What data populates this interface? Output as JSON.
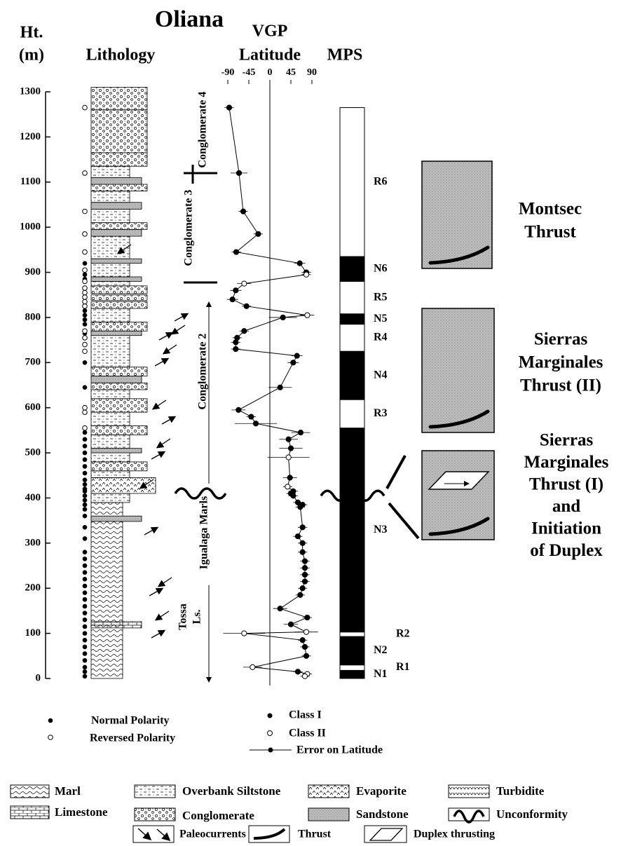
{
  "title": "Oliana",
  "height_axis": {
    "label_lines": [
      "Ht.",
      "(m)"
    ],
    "ylim": [
      0,
      1300
    ],
    "yticks": [
      0,
      100,
      200,
      300,
      400,
      500,
      600,
      700,
      800,
      900,
      1000,
      1100,
      1200,
      1300
    ]
  },
  "lithology": {
    "title": "Lithology",
    "layers": [
      {
        "rock": "Marl",
        "from": 0,
        "to": 390
      },
      {
        "rock": "Limestone",
        "from": 112,
        "to": 126
      },
      {
        "rock": "Sandstone",
        "from": 348,
        "to": 360
      },
      {
        "rock": "Overbank Siltstone",
        "from": 390,
        "to": 410
      },
      {
        "rock": "Evaporite",
        "from": 410,
        "to": 445
      },
      {
        "rock": "Overbank Siltstone",
        "from": 445,
        "to": 460
      },
      {
        "rock": "Conglomerate",
        "from": 460,
        "to": 480
      },
      {
        "rock": "Overbank Siltstone",
        "from": 480,
        "to": 500
      },
      {
        "rock": "Sandstone",
        "from": 500,
        "to": 510
      },
      {
        "rock": "Overbank Siltstone",
        "from": 510,
        "to": 540
      },
      {
        "rock": "Conglomerate",
        "from": 540,
        "to": 560
      },
      {
        "rock": "Overbank Siltstone",
        "from": 560,
        "to": 590
      },
      {
        "rock": "Conglomerate",
        "from": 590,
        "to": 620
      },
      {
        "rock": "Overbank Siltstone",
        "from": 620,
        "to": 640
      },
      {
        "rock": "Conglomerate",
        "from": 640,
        "to": 655
      },
      {
        "rock": "Sandstone",
        "from": 655,
        "to": 670
      },
      {
        "rock": "Conglomerate",
        "from": 670,
        "to": 690
      },
      {
        "rock": "Overbank Siltstone",
        "from": 690,
        "to": 760
      },
      {
        "rock": "Sandstone",
        "from": 760,
        "to": 770
      },
      {
        "rock": "Conglomerate",
        "from": 770,
        "to": 790
      },
      {
        "rock": "Overbank Siltstone",
        "from": 790,
        "to": 820
      },
      {
        "rock": "Conglomerate",
        "from": 820,
        "to": 835
      },
      {
        "rock": "Conglomerate",
        "from": 838,
        "to": 850
      },
      {
        "rock": "Conglomerate",
        "from": 853,
        "to": 870
      },
      {
        "rock": "Overbank Siltstone",
        "from": 870,
        "to": 880
      },
      {
        "rock": "Sandstone",
        "from": 880,
        "to": 890
      },
      {
        "rock": "Overbank Siltstone",
        "from": 890,
        "to": 920
      },
      {
        "rock": "Sandstone",
        "from": 920,
        "to": 930
      },
      {
        "rock": "Overbank Siltstone",
        "from": 930,
        "to": 980
      },
      {
        "rock": "Sandstone",
        "from": 980,
        "to": 995
      },
      {
        "rock": "Conglomerate",
        "from": 995,
        "to": 1010
      },
      {
        "rock": "Overbank Siltstone",
        "from": 1010,
        "to": 1040
      },
      {
        "rock": "Sandstone",
        "from": 1040,
        "to": 1055
      },
      {
        "rock": "Overbank Siltstone",
        "from": 1055,
        "to": 1080
      },
      {
        "rock": "Conglomerate",
        "from": 1080,
        "to": 1095
      },
      {
        "rock": "Sandstone",
        "from": 1095,
        "to": 1110
      },
      {
        "rock": "Overbank Siltstone",
        "from": 1110,
        "to": 1135
      },
      {
        "rock": "Conglomerate",
        "from": 1135,
        "to": 1165
      },
      {
        "rock": "Conglomerate",
        "from": 1165,
        "to": 1260
      },
      {
        "rock": "Conglomerate",
        "from": 1260,
        "to": 1310
      }
    ],
    "normal_polarity_heights": [
      5,
      15,
      25,
      40,
      55,
      70,
      85,
      100,
      115,
      130,
      145,
      160,
      175,
      190,
      205,
      220,
      235,
      250,
      265,
      280,
      310,
      335,
      360,
      375,
      385,
      395,
      405,
      415,
      420,
      430,
      440,
      455,
      470,
      485,
      500,
      515,
      530,
      545,
      645,
      700,
      765,
      785,
      795,
      805,
      815,
      885,
      895,
      920
    ],
    "reversed_polarity_heights": [
      555,
      590,
      600,
      725,
      740,
      755,
      770,
      825,
      835,
      845,
      855,
      865,
      880,
      905,
      945,
      985,
      1035,
      1120,
      1265
    ]
  },
  "vgp": {
    "title_lines": [
      "VGP",
      "Latitude"
    ],
    "xlim": [
      -90,
      90
    ],
    "xticks": [
      -90,
      -45,
      0,
      45,
      90
    ],
    "heights": [
      1265,
      1120,
      1035,
      985,
      945,
      920,
      900,
      895,
      875,
      860,
      840,
      825,
      805,
      800,
      770,
      755,
      745,
      730,
      715,
      700,
      645,
      595,
      580,
      565,
      545,
      530,
      510,
      490,
      445,
      425,
      415,
      410,
      405,
      390,
      385,
      380,
      335,
      315,
      300,
      280,
      260,
      245,
      230,
      215,
      200,
      185,
      155,
      135,
      120,
      103,
      100,
      85,
      70,
      50,
      25,
      15,
      10,
      5
    ],
    "latitudes": [
      -87,
      -66,
      -57,
      -25,
      -72,
      64,
      78,
      78,
      -55,
      -73,
      -80,
      -50,
      80,
      28,
      -55,
      -70,
      -73,
      -73,
      58,
      50,
      22,
      -67,
      -40,
      -30,
      66,
      40,
      45,
      40,
      43,
      38,
      50,
      45,
      50,
      60,
      70,
      65,
      70,
      60,
      70,
      70,
      75,
      75,
      75,
      75,
      70,
      65,
      22,
      80,
      45,
      78,
      -55,
      70,
      75,
      78,
      -37,
      60,
      80,
      75
    ],
    "errors": [
      10,
      18,
      10,
      10,
      10,
      12,
      10,
      10,
      15,
      12,
      12,
      10,
      15,
      30,
      10,
      10,
      10,
      10,
      12,
      12,
      25,
      15,
      10,
      45,
      20,
      20,
      25,
      45,
      15,
      10,
      10,
      10,
      10,
      10,
      10,
      10,
      10,
      10,
      10,
      10,
      10,
      10,
      10,
      10,
      10,
      10,
      15,
      10,
      15,
      25,
      45,
      10,
      10,
      10,
      20,
      10,
      10,
      10
    ],
    "classes": [
      1,
      1,
      1,
      1,
      1,
      1,
      1,
      2,
      2,
      1,
      1,
      1,
      2,
      1,
      1,
      1,
      1,
      1,
      1,
      1,
      1,
      1,
      1,
      1,
      1,
      1,
      1,
      2,
      1,
      2,
      1,
      1,
      1,
      1,
      1,
      1,
      1,
      1,
      1,
      1,
      1,
      1,
      1,
      1,
      1,
      1,
      1,
      1,
      1,
      2,
      2,
      1,
      1,
      1,
      2,
      1,
      2,
      2
    ]
  },
  "mps": {
    "title": "MPS",
    "zones": [
      {
        "label": "N1",
        "from": 0,
        "to": 18,
        "color": "#000"
      },
      {
        "label": "R1",
        "from": 18,
        "to": 30,
        "color": "#fff"
      },
      {
        "label": "N2",
        "from": 30,
        "to": 93,
        "color": "#000"
      },
      {
        "label": "R2",
        "from": 93,
        "to": 103,
        "color": "#fff"
      },
      {
        "label": "N3",
        "from": 103,
        "to": 555,
        "color": "#000"
      },
      {
        "label": "R3",
        "from": 555,
        "to": 618,
        "color": "#fff"
      },
      {
        "label": "N4",
        "from": 618,
        "to": 725,
        "color": "#000"
      },
      {
        "label": "R4",
        "from": 725,
        "to": 785,
        "color": "#fff"
      },
      {
        "label": "N5",
        "from": 785,
        "to": 808,
        "color": "#000"
      },
      {
        "label": "R5",
        "from": 808,
        "to": 880,
        "color": "#fff"
      },
      {
        "label": "N6",
        "from": 880,
        "to": 935,
        "color": "#000"
      },
      {
        "label": "R6",
        "from": 935,
        "to": 1265,
        "color": "#fff"
      }
    ]
  },
  "formations": {
    "conglomerate_4": "Conglomerate 4",
    "conglomerate_3": "Conglomerate 3",
    "conglomerate_2": "Conglomerate 2",
    "igualaga": "Igualaga Marls",
    "tossa_lines": [
      "Tossa",
      "Ls."
    ]
  },
  "thrusts": [
    {
      "lines": [
        "Montsec",
        "Thrust"
      ]
    },
    {
      "lines": [
        "Sierras",
        "Marginales",
        "Thrust (II)"
      ]
    },
    {
      "lines": [
        "Sierras",
        "Marginales",
        "Thrust (I)",
        "and",
        "Initiation",
        "of Duplex"
      ]
    }
  ],
  "legend": {
    "polarity": [
      "Normal Polarity",
      "Reversed Polarity"
    ],
    "vgp": [
      "Class I",
      "Class II",
      "Error on Latitude"
    ],
    "rocks": [
      "Marl",
      "Overbank Siltstone",
      "Evaporite",
      "Turbidite",
      "Limestone",
      "Conglomerate",
      "Sandstone",
      "Unconformity"
    ],
    "symbols": [
      "Paleocurrents",
      "Thrust",
      "Duplex thrusting"
    ]
  }
}
